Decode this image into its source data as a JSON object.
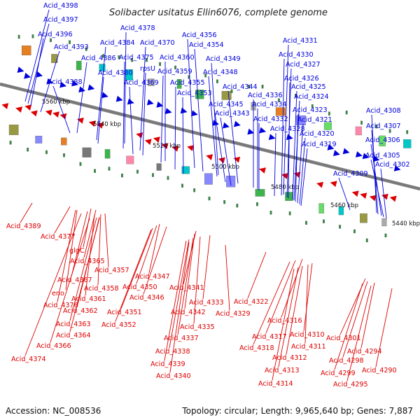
{
  "title": "Solibacter usitatus Ellin6076, complete genome",
  "accession": "Accession: NC_008536",
  "summary": "Topology: circular; Length: 9,965,640 bp; Genes: 7,887",
  "colors": {
    "forward": "#0000dd",
    "reverse": "#dd0000",
    "backbone": "#7a7a7a"
  },
  "kbp_ticks": [
    "5560 kbp",
    "5540 kbp",
    "5520 kbp",
    "5500 kbp",
    "5480 kbp",
    "5460 kbp",
    "5440 kbp"
  ],
  "forward_labels": [
    "Acid_4398",
    "Acid_4397",
    "Acid_4396",
    "Acid_4393",
    "Acid_4388",
    "Acid_4386",
    "Acid_4384",
    "Acid_4380",
    "Acid_4378",
    "Acid_4375",
    "Acid_4370",
    "Acid_4369",
    "rpsU",
    "Acid_4360",
    "Acid_4359",
    "Acid_4356",
    "Acid_4355",
    "Acid_4354",
    "Acid_4353",
    "Acid_4349",
    "Acid_4348",
    "Acid_4345",
    "Acid_4344",
    "Acid_4343",
    "Acid_4336",
    "Acid_4334",
    "Acid_4332",
    "Acid_4331",
    "Acid_4330",
    "Acid_4328",
    "Acid_4327",
    "Acid_4326",
    "Acid_4325",
    "Acid_4324",
    "Acid_4323",
    "Acid_4321",
    "Acid_4320",
    "Acid_4319",
    "Acid_4309",
    "Acid_4308",
    "Acid_4307",
    "Acid_4306",
    "Acid_4305",
    "Acid_4302"
  ],
  "reverse_labels": [
    "Acid_4389",
    "Acid_4377",
    "glgC",
    "Acid_4365",
    "Acid_4367",
    "Acid_4357",
    "Acid_4358",
    "Acid_4361",
    "eno",
    "Acid_4376",
    "Acid_4362",
    "Acid_4363",
    "Acid_4364",
    "Acid_4366",
    "Acid_4374",
    "Acid_4347",
    "Acid_4350",
    "Acid_4346",
    "Acid_4351",
    "Acid_4352",
    "Acid_4341",
    "Acid_4342",
    "Acid_4333",
    "Acid_4329",
    "Acid_4335",
    "Acid_4337",
    "Acid_4338",
    "Acid_4339",
    "Acid_4340",
    "Acid_4322",
    "Acid_4316",
    "Acid_4317",
    "Acid_4318",
    "Acid_4310",
    "Acid_4311",
    "Acid_4312",
    "Acid_4313",
    "Acid_4314",
    "Acid_4301",
    "Acid_4294",
    "Acid_4298",
    "Acid_4299",
    "Acid_4295",
    "Acid_4290"
  ]
}
